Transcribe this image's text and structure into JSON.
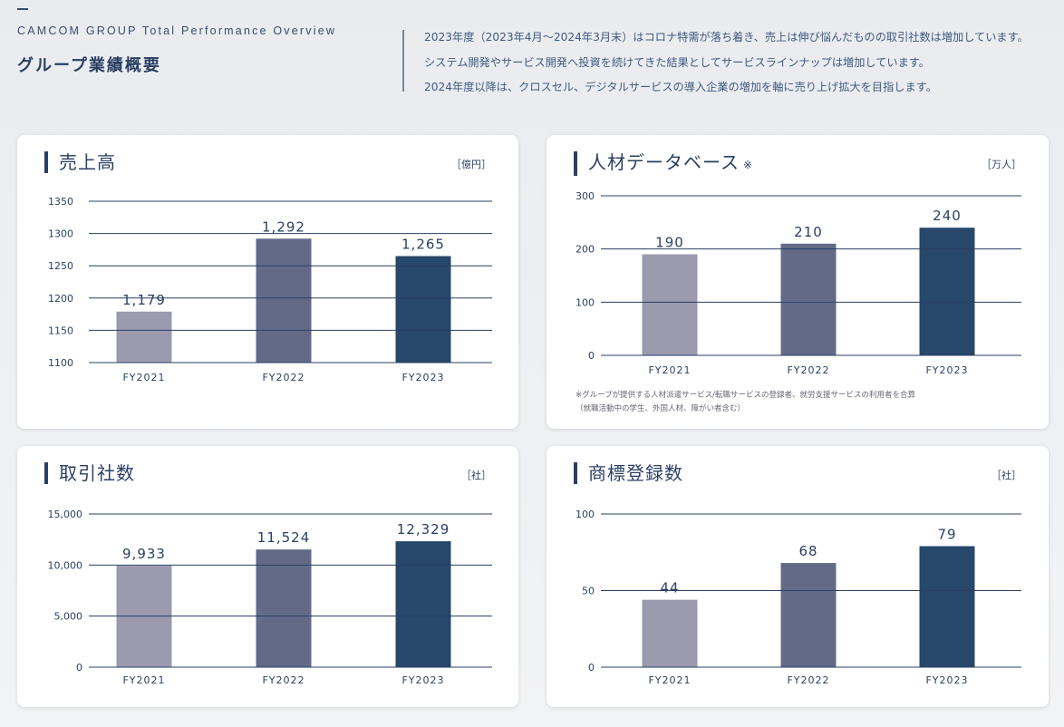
{
  "header": {
    "subtitle": "CAMCOM GROUP Total Performance Overview",
    "title": "グループ業績概要",
    "intro": [
      "2023年度（2023年4月〜2024年3月末）はコロナ特需が落ち着き、売上は伸び悩んだものの取引社数は増加しています。",
      "システム開発やサービス開発へ投資を続けてきた結果としてサービスラインナップは増加しています。",
      "2024年度以降は、クロスセル、デジタルサービスの導入企業の増加を軸に売り上げ拡大を目指します。"
    ]
  },
  "colors": [
    "#9b9aae",
    "#636a88",
    "#27476b"
  ],
  "chart_data": [
    {
      "type": "bar",
      "title": "売上高",
      "unit": "［億円］",
      "categories": [
        "FY2021",
        "FY2022",
        "FY2023"
      ],
      "values": [
        1179,
        1292,
        1265
      ],
      "value_labels": [
        "1,179",
        "1,292",
        "1,265"
      ],
      "ylim": [
        1100,
        1350
      ],
      "yticks": [
        1100,
        1150,
        1200,
        1250,
        1300,
        1350
      ],
      "ytick_labels": [
        "1100",
        "1150",
        "1200",
        "1250",
        "1300",
        "1350"
      ]
    },
    {
      "type": "bar",
      "title": "人材データベース",
      "title_mark": "※",
      "unit": "［万人］",
      "categories": [
        "FY2021",
        "FY2022",
        "FY2023"
      ],
      "values": [
        190,
        210,
        240
      ],
      "value_labels": [
        "190",
        "210",
        "240"
      ],
      "ylim": [
        0,
        300
      ],
      "yticks": [
        0,
        100,
        200,
        300
      ],
      "ytick_labels": [
        "0",
        "100",
        "200",
        "300"
      ],
      "note": [
        "※グループが提供する人材派遣サービス/転職サービスの登録者、就労支援サービスの利用者を合算",
        "（就職活動中の学生、外国人材、障がい者含む）"
      ]
    },
    {
      "type": "bar",
      "title": "取引社数",
      "unit": "［社］",
      "categories": [
        "FY2021",
        "FY2022",
        "FY2023"
      ],
      "values": [
        9933,
        11524,
        12329
      ],
      "value_labels": [
        "9,933",
        "11,524",
        "12,329"
      ],
      "ylim": [
        0,
        15000
      ],
      "yticks": [
        0,
        5000,
        10000,
        15000
      ],
      "ytick_labels": [
        "0",
        "5,000",
        "10,000",
        "15,000"
      ]
    },
    {
      "type": "bar",
      "title": "商標登録数",
      "unit": "［社］",
      "categories": [
        "FY2021",
        "FY2022",
        "FY2023"
      ],
      "values": [
        44,
        68,
        79
      ],
      "value_labels": [
        "44",
        "68",
        "79"
      ],
      "ylim": [
        0,
        100
      ],
      "yticks": [
        0,
        50,
        100
      ],
      "ytick_labels": [
        "0",
        "50",
        "100"
      ]
    }
  ]
}
